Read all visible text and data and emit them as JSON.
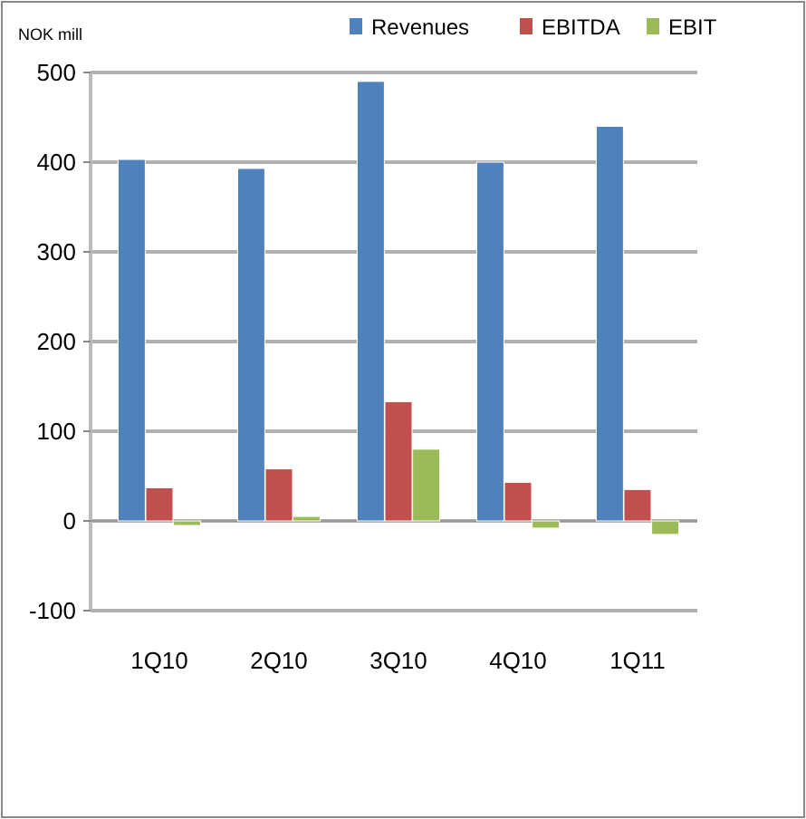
{
  "chart_data": {
    "type": "bar",
    "ylabel": "NOK mill",
    "categories": [
      "1Q10",
      "2Q10",
      "3Q10",
      "4Q10",
      "1Q11"
    ],
    "series": [
      {
        "name": "Revenues",
        "color": "#4f81bd",
        "values": [
          403,
          393,
          490,
          400,
          440
        ]
      },
      {
        "name": "EBITDA",
        "color": "#c0504d",
        "values": [
          37,
          58,
          133,
          43,
          35
        ]
      },
      {
        "name": "EBIT",
        "color": "#9bbb59",
        "values": [
          -5,
          5,
          80,
          -8,
          -15
        ]
      }
    ],
    "ylim": [
      -100,
      500
    ],
    "yticks": [
      -100,
      0,
      100,
      200,
      300,
      400,
      500
    ],
    "grid": "y",
    "legend": "top right"
  }
}
